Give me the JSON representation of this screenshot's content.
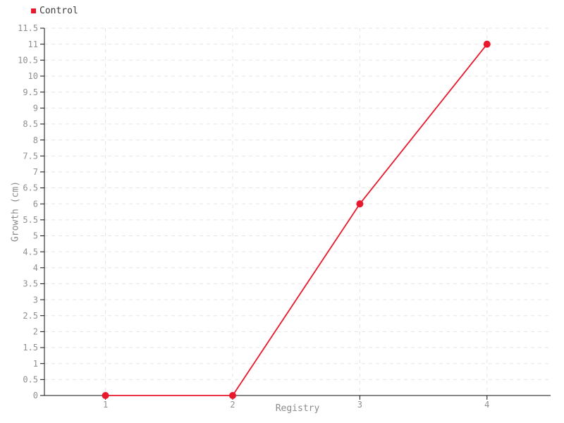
{
  "chart_data": {
    "type": "line",
    "title": "",
    "xlabel": "Registry",
    "ylabel": "Growth (cm)",
    "x": [
      1,
      2,
      3,
      4
    ],
    "series": [
      {
        "name": "Control",
        "color": "#e8192d",
        "values": [
          0,
          0,
          6,
          11
        ]
      }
    ],
    "xticks": [
      1,
      2,
      3,
      4
    ],
    "yticks": [
      0,
      0.5,
      1,
      1.5,
      2,
      2.5,
      3,
      3.5,
      4,
      4.5,
      5,
      5.5,
      6,
      6.5,
      7,
      7.5,
      8,
      8.5,
      9,
      9.5,
      10,
      10.5,
      11,
      11.5
    ],
    "xlim": [
      0.52,
      4.5
    ],
    "ylim": [
      0,
      11.5
    ],
    "grid": {
      "horizontal": true,
      "vertical": true,
      "style": "dashed",
      "color": "#e5e5e5"
    },
    "axis_color": "#111111",
    "tick_label_color": "#909090",
    "markers": {
      "shape": "circle",
      "radius": 5
    },
    "legend": {
      "position": "top-left",
      "items": [
        {
          "label": "Control",
          "color": "#e8192d"
        }
      ]
    }
  }
}
